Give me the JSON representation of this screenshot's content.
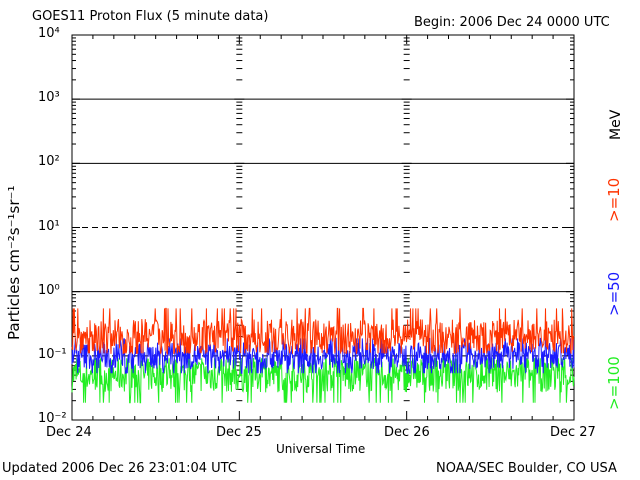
{
  "header": {
    "title": "GOES11 Proton Flux (5 minute data)",
    "begin": "Begin: 2006 Dec 24 0000 UTC"
  },
  "footer": {
    "updated": "Updated 2006 Dec 26 23:01:04 UTC",
    "source": "NOAA/SEC Boulder, CO USA"
  },
  "legend": {
    "unit": "MeV",
    "entries": [
      {
        "label": ">=10",
        "color": "#ff3300"
      },
      {
        "label": ">=50",
        "color": "#1a1aff"
      },
      {
        "label": ">=100",
        "color": "#22ee22"
      }
    ]
  },
  "chart_data": {
    "type": "line",
    "title": "GOES11 Proton Flux (5 minute data)",
    "xlabel": "Universal Time",
    "ylabel": "Particles cm⁻²s⁻¹sr⁻¹",
    "yscale": "log",
    "ylim": [
      0.01,
      10000
    ],
    "xlim": [
      "2006-12-24 00:00",
      "2006-12-27 00:00"
    ],
    "x_ticks": [
      "Dec 24",
      "Dec 25",
      "Dec 26",
      "Dec 27"
    ],
    "y_tick_labels": [
      "10⁻²",
      "10⁻¹",
      "10⁰",
      "10¹",
      "10²",
      "10³",
      "10⁴"
    ],
    "reference_lines": [
      {
        "y": 1000,
        "style": "solid"
      },
      {
        "y": 100,
        "style": "solid"
      },
      {
        "y": 10,
        "style": "dashed"
      },
      {
        "y": 1,
        "style": "solid"
      },
      {
        "y": 0.1,
        "style": "dashed"
      }
    ],
    "series": [
      {
        "name": ">=10 MeV",
        "color": "#ff3300",
        "x": [
          "2006-12-24 00:00",
          "2006-12-25 00:00",
          "2006-12-26 00:00",
          "2006-12-27 00:00"
        ],
        "values": [
          0.2,
          0.2,
          0.2,
          0.2
        ],
        "range": [
          0.1,
          0.6
        ]
      },
      {
        "name": ">=50 MeV",
        "color": "#1a1aff",
        "x": [
          "2006-12-24 00:00",
          "2006-12-25 00:00",
          "2006-12-26 00:00",
          "2006-12-27 00:00"
        ],
        "values": [
          0.1,
          0.1,
          0.1,
          0.1
        ],
        "range": [
          0.05,
          0.2
        ]
      },
      {
        "name": ">=100 MeV",
        "color": "#22ee22",
        "x": [
          "2006-12-24 00:00",
          "2006-12-25 00:00",
          "2006-12-26 00:00",
          "2006-12-27 00:00"
        ],
        "values": [
          0.05,
          0.05,
          0.05,
          0.05
        ],
        "range": [
          0.017,
          0.1
        ]
      }
    ]
  }
}
